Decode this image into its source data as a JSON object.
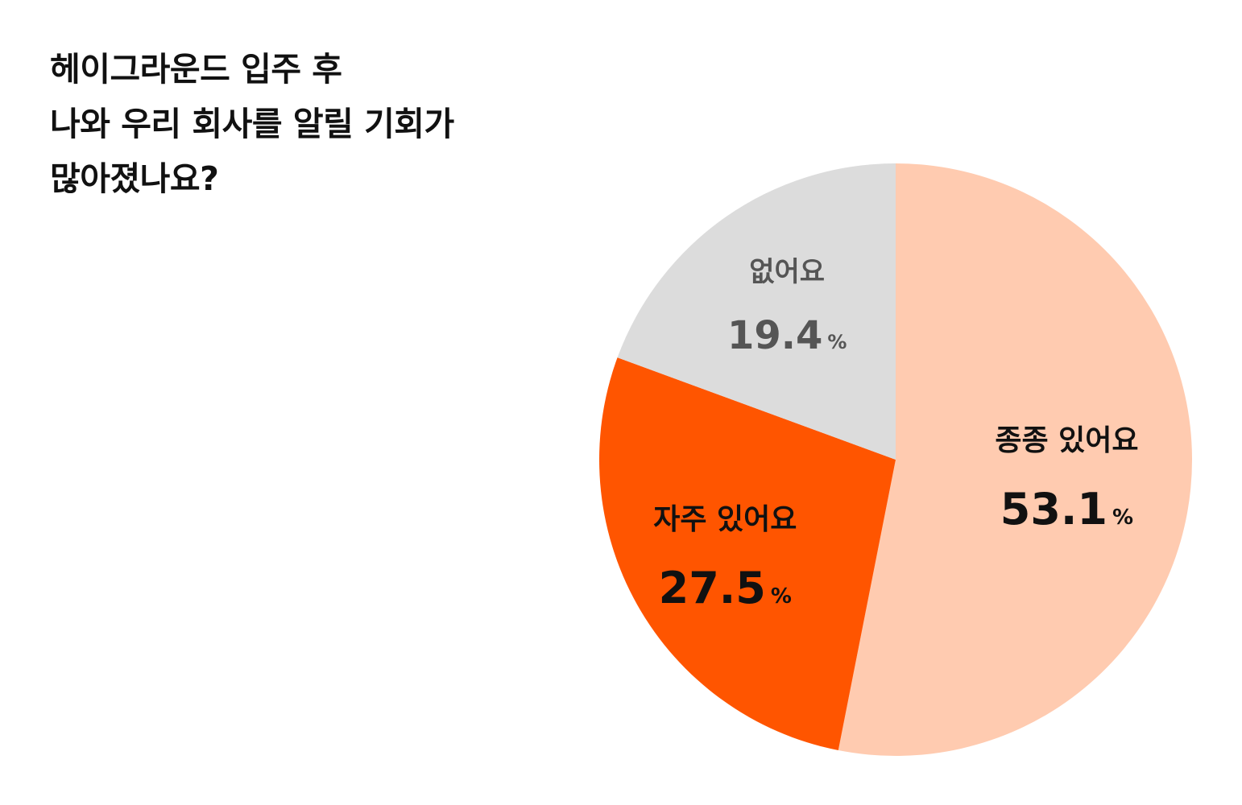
{
  "title_lines": [
    "헤이그라운드 입주 후",
    "나와 우리 회사를 알릴 기회가",
    "많아졌나요?"
  ],
  "chart_data": {
    "type": "pie",
    "title": "헤이그라운드 입주 후 나와 우리 회사를 알릴 기회가 많아졌나요?",
    "unit": "%",
    "slices": [
      {
        "label": "종종 있어요",
        "value": 53.1,
        "value_text": "53.1",
        "color": "#FFCBB0",
        "text_color": "#111111"
      },
      {
        "label": "자주 있어요",
        "value": 27.5,
        "value_text": "27.5",
        "color": "#FF5500",
        "text_color": "#111111"
      },
      {
        "label": "없어요",
        "value": 19.4,
        "value_text": "19.4",
        "color": "#DCDCDC",
        "text_color": "#555555"
      }
    ]
  }
}
